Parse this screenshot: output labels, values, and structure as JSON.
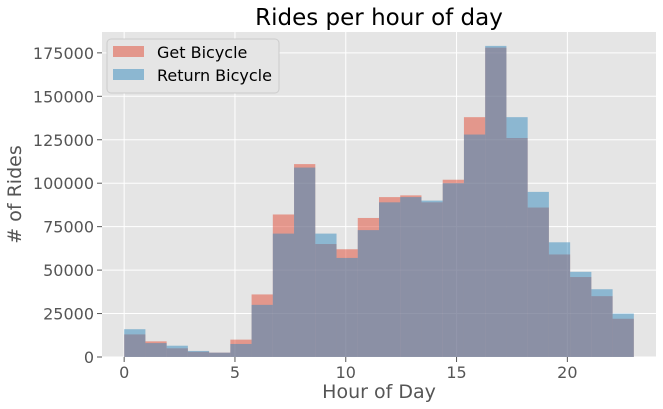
{
  "chart_data": {
    "type": "bar",
    "title": "Rides per hour of day",
    "xlabel": "Hour of Day",
    "ylabel": "# of Rides",
    "xlim": [
      -1,
      24
    ],
    "ylim": [
      0,
      187000
    ],
    "x_ticks": [
      0,
      5,
      10,
      15,
      20
    ],
    "y_ticks": [
      0,
      25000,
      50000,
      75000,
      100000,
      125000,
      150000,
      175000
    ],
    "grid": true,
    "legend_position": "top-left",
    "bar_mode": "overlay-histogram",
    "categories": [
      0,
      1,
      2,
      3,
      4,
      5,
      6,
      7,
      8,
      9,
      10,
      11,
      12,
      13,
      14,
      15,
      16,
      17,
      18,
      19,
      20,
      21,
      22,
      23
    ],
    "series": [
      {
        "name": "Get Bicycle",
        "color": "#E24A33",
        "values": [
          13000,
          9000,
          5000,
          3000,
          2500,
          10000,
          36000,
          82000,
          111000,
          65000,
          62000,
          80000,
          92000,
          93000,
          89000,
          102000,
          138000,
          178000,
          126000,
          86000,
          59000,
          46000,
          35000,
          22000
        ]
      },
      {
        "name": "Return Bicycle",
        "color": "#348ABD",
        "values": [
          16000,
          8000,
          6500,
          3500,
          2500,
          7500,
          30000,
          71000,
          109000,
          71000,
          57000,
          73000,
          89000,
          92000,
          90000,
          100000,
          128000,
          179000,
          138000,
          95000,
          66000,
          49000,
          39000,
          25000
        ]
      }
    ]
  }
}
